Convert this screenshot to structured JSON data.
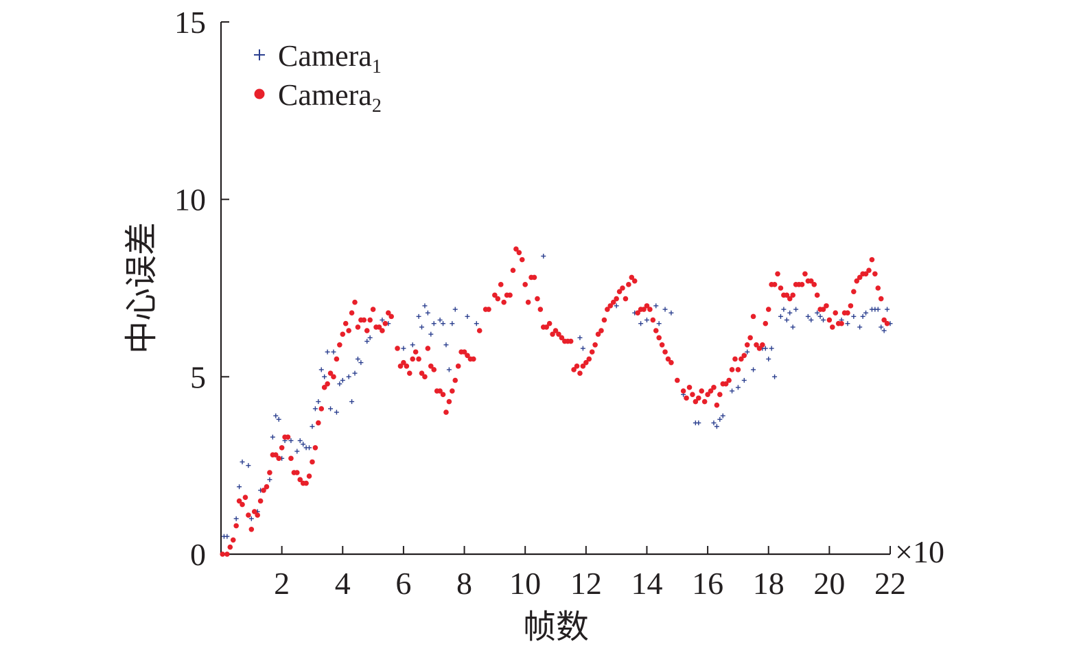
{
  "chart_data": {
    "type": "scatter",
    "xlabel": "帧数",
    "ylabel": "中心误差",
    "x_multiplier_label": "×10",
    "xlim": [
      0,
      22
    ],
    "ylim": [
      0,
      15
    ],
    "x_ticks": [
      2,
      4,
      6,
      8,
      10,
      12,
      14,
      16,
      18,
      20,
      22
    ],
    "y_ticks": [
      0,
      5,
      10,
      15
    ],
    "grid": false,
    "legend_position": "top-left",
    "series": [
      {
        "name": "Camera",
        "name_subscript": "1",
        "marker": "plus",
        "color": "#2b3f8f",
        "points": [
          [
            0.1,
            0.5
          ],
          [
            0.2,
            0.5
          ],
          [
            0.4,
            0.4
          ],
          [
            0.5,
            1.0
          ],
          [
            0.6,
            1.9
          ],
          [
            0.7,
            2.6
          ],
          [
            0.8,
            1.6
          ],
          [
            0.9,
            2.5
          ],
          [
            1.0,
            1.0
          ],
          [
            1.2,
            1.2
          ],
          [
            1.3,
            1.8
          ],
          [
            1.5,
            1.9
          ],
          [
            1.6,
            2.1
          ],
          [
            1.7,
            3.3
          ],
          [
            1.8,
            3.9
          ],
          [
            1.9,
            3.8
          ],
          [
            2.0,
            2.7
          ],
          [
            2.1,
            3.2
          ],
          [
            2.3,
            3.2
          ],
          [
            2.5,
            2.9
          ],
          [
            2.6,
            3.2
          ],
          [
            2.7,
            3.1
          ],
          [
            2.8,
            3.0
          ],
          [
            2.9,
            3.0
          ],
          [
            3.0,
            3.6
          ],
          [
            3.1,
            4.1
          ],
          [
            3.2,
            4.3
          ],
          [
            3.3,
            5.2
          ],
          [
            3.4,
            5.0
          ],
          [
            3.5,
            5.7
          ],
          [
            3.6,
            4.1
          ],
          [
            3.7,
            5.7
          ],
          [
            3.8,
            4.0
          ],
          [
            3.9,
            4.8
          ],
          [
            4.0,
            4.9
          ],
          [
            4.2,
            5.0
          ],
          [
            4.3,
            4.3
          ],
          [
            4.4,
            5.1
          ],
          [
            4.5,
            5.5
          ],
          [
            4.6,
            5.4
          ],
          [
            4.8,
            6.0
          ],
          [
            4.9,
            6.1
          ],
          [
            5.3,
            6.6
          ],
          [
            5.5,
            6.5
          ],
          [
            6.0,
            5.8
          ],
          [
            6.3,
            5.9
          ],
          [
            6.5,
            6.7
          ],
          [
            6.6,
            6.4
          ],
          [
            6.7,
            7.0
          ],
          [
            6.8,
            6.8
          ],
          [
            6.9,
            6.2
          ],
          [
            7.0,
            6.5
          ],
          [
            7.2,
            6.6
          ],
          [
            7.3,
            6.5
          ],
          [
            7.4,
            5.9
          ],
          [
            7.5,
            5.2
          ],
          [
            7.6,
            6.5
          ],
          [
            7.7,
            6.9
          ],
          [
            8.1,
            6.7
          ],
          [
            8.4,
            6.5
          ],
          [
            10.6,
            8.4
          ],
          [
            11.8,
            6.1
          ],
          [
            11.9,
            5.8
          ],
          [
            13.0,
            7.0
          ],
          [
            13.6,
            6.8
          ],
          [
            13.8,
            6.5
          ],
          [
            14.0,
            6.6
          ],
          [
            14.3,
            7.0
          ],
          [
            14.4,
            6.5
          ],
          [
            14.6,
            6.9
          ],
          [
            14.8,
            6.8
          ],
          [
            15.2,
            4.5
          ],
          [
            15.6,
            3.7
          ],
          [
            15.7,
            3.7
          ],
          [
            16.2,
            3.7
          ],
          [
            16.3,
            3.6
          ],
          [
            16.4,
            3.8
          ],
          [
            16.5,
            3.9
          ],
          [
            16.8,
            4.6
          ],
          [
            17.0,
            4.7
          ],
          [
            17.2,
            4.9
          ],
          [
            17.3,
            5.7
          ],
          [
            17.5,
            5.2
          ],
          [
            17.8,
            5.8
          ],
          [
            17.9,
            5.8
          ],
          [
            18.0,
            5.5
          ],
          [
            18.1,
            5.8
          ],
          [
            18.2,
            5.0
          ],
          [
            18.4,
            6.7
          ],
          [
            18.5,
            6.9
          ],
          [
            18.6,
            6.6
          ],
          [
            18.7,
            6.8
          ],
          [
            18.8,
            6.4
          ],
          [
            18.9,
            6.9
          ],
          [
            19.3,
            6.7
          ],
          [
            19.4,
            6.6
          ],
          [
            19.6,
            6.8
          ],
          [
            19.7,
            6.7
          ],
          [
            19.8,
            6.6
          ],
          [
            20.2,
            6.8
          ],
          [
            20.4,
            6.6
          ],
          [
            20.6,
            6.5
          ],
          [
            20.8,
            6.7
          ],
          [
            21.0,
            6.4
          ],
          [
            21.1,
            6.7
          ],
          [
            21.2,
            6.8
          ],
          [
            21.4,
            6.9
          ],
          [
            21.5,
            6.9
          ],
          [
            21.6,
            6.9
          ],
          [
            21.7,
            6.4
          ],
          [
            21.8,
            6.3
          ],
          [
            21.9,
            6.9
          ],
          [
            22.0,
            6.5
          ]
        ]
      },
      {
        "name": "Camera",
        "name_subscript": "2",
        "marker": "circle",
        "color": "#e8202a",
        "points": [
          [
            0.05,
            0.0
          ],
          [
            0.2,
            0.0
          ],
          [
            0.3,
            0.2
          ],
          [
            0.4,
            0.4
          ],
          [
            0.5,
            0.8
          ],
          [
            0.6,
            1.5
          ],
          [
            0.7,
            1.4
          ],
          [
            0.8,
            1.6
          ],
          [
            0.9,
            1.1
          ],
          [
            1.0,
            0.7
          ],
          [
            1.1,
            1.2
          ],
          [
            1.2,
            1.1
          ],
          [
            1.3,
            1.5
          ],
          [
            1.4,
            1.8
          ],
          [
            1.5,
            1.9
          ],
          [
            1.6,
            2.3
          ],
          [
            1.7,
            2.8
          ],
          [
            1.8,
            2.8
          ],
          [
            1.9,
            2.7
          ],
          [
            2.0,
            3.0
          ],
          [
            2.1,
            3.3
          ],
          [
            2.2,
            3.3
          ],
          [
            2.3,
            2.7
          ],
          [
            2.4,
            2.3
          ],
          [
            2.5,
            2.3
          ],
          [
            2.6,
            2.1
          ],
          [
            2.7,
            2.0
          ],
          [
            2.8,
            2.0
          ],
          [
            2.9,
            2.2
          ],
          [
            3.0,
            2.6
          ],
          [
            3.1,
            3.0
          ],
          [
            3.2,
            3.7
          ],
          [
            3.3,
            4.1
          ],
          [
            3.4,
            4.7
          ],
          [
            3.5,
            4.8
          ],
          [
            3.6,
            5.1
          ],
          [
            3.7,
            5.0
          ],
          [
            3.8,
            5.5
          ],
          [
            3.9,
            5.9
          ],
          [
            4.0,
            6.2
          ],
          [
            4.1,
            6.5
          ],
          [
            4.2,
            6.3
          ],
          [
            4.3,
            6.8
          ],
          [
            4.4,
            7.1
          ],
          [
            4.5,
            6.4
          ],
          [
            4.6,
            6.6
          ],
          [
            4.7,
            6.6
          ],
          [
            4.8,
            6.3
          ],
          [
            4.9,
            6.6
          ],
          [
            5.0,
            6.9
          ],
          [
            5.1,
            6.4
          ],
          [
            5.2,
            6.4
          ],
          [
            5.3,
            6.3
          ],
          [
            5.4,
            6.5
          ],
          [
            5.5,
            6.8
          ],
          [
            5.6,
            6.7
          ],
          [
            5.8,
            5.8
          ],
          [
            5.9,
            5.3
          ],
          [
            6.0,
            5.4
          ],
          [
            6.1,
            5.3
          ],
          [
            6.2,
            5.1
          ],
          [
            6.3,
            5.5
          ],
          [
            6.4,
            5.7
          ],
          [
            6.5,
            5.5
          ],
          [
            6.6,
            5.1
          ],
          [
            6.7,
            5.0
          ],
          [
            6.8,
            5.8
          ],
          [
            6.9,
            5.3
          ],
          [
            7.0,
            5.2
          ],
          [
            7.1,
            4.6
          ],
          [
            7.2,
            4.6
          ],
          [
            7.3,
            4.5
          ],
          [
            7.4,
            4.0
          ],
          [
            7.5,
            4.3
          ],
          [
            7.6,
            4.6
          ],
          [
            7.7,
            4.9
          ],
          [
            7.8,
            5.3
          ],
          [
            7.9,
            5.7
          ],
          [
            8.0,
            5.7
          ],
          [
            8.1,
            5.6
          ],
          [
            8.2,
            5.5
          ],
          [
            8.3,
            5.5
          ],
          [
            8.5,
            6.3
          ],
          [
            8.7,
            6.9
          ],
          [
            8.8,
            6.9
          ],
          [
            9.0,
            7.3
          ],
          [
            9.1,
            7.2
          ],
          [
            9.2,
            7.6
          ],
          [
            9.3,
            7.1
          ],
          [
            9.4,
            7.3
          ],
          [
            9.5,
            7.3
          ],
          [
            9.6,
            8.0
          ],
          [
            9.7,
            8.6
          ],
          [
            9.8,
            8.5
          ],
          [
            9.9,
            8.3
          ],
          [
            10.0,
            7.6
          ],
          [
            10.1,
            7.1
          ],
          [
            10.2,
            7.8
          ],
          [
            10.3,
            7.8
          ],
          [
            10.4,
            7.2
          ],
          [
            10.5,
            6.9
          ],
          [
            10.6,
            6.4
          ],
          [
            10.7,
            6.4
          ],
          [
            10.8,
            6.5
          ],
          [
            10.9,
            6.2
          ],
          [
            11.0,
            6.3
          ],
          [
            11.1,
            6.2
          ],
          [
            11.2,
            6.1
          ],
          [
            11.3,
            6.0
          ],
          [
            11.4,
            6.0
          ],
          [
            11.5,
            6.0
          ],
          [
            11.6,
            5.2
          ],
          [
            11.7,
            5.3
          ],
          [
            11.8,
            5.1
          ],
          [
            11.9,
            5.3
          ],
          [
            12.0,
            5.4
          ],
          [
            12.1,
            5.5
          ],
          [
            12.2,
            5.7
          ],
          [
            12.3,
            5.9
          ],
          [
            12.4,
            6.2
          ],
          [
            12.5,
            6.3
          ],
          [
            12.6,
            6.6
          ],
          [
            12.7,
            6.9
          ],
          [
            12.8,
            7.0
          ],
          [
            12.9,
            7.1
          ],
          [
            13.0,
            7.2
          ],
          [
            13.1,
            7.4
          ],
          [
            13.2,
            7.5
          ],
          [
            13.3,
            7.2
          ],
          [
            13.4,
            7.6
          ],
          [
            13.5,
            7.8
          ],
          [
            13.6,
            7.7
          ],
          [
            13.7,
            6.8
          ],
          [
            13.8,
            6.9
          ],
          [
            13.9,
            6.9
          ],
          [
            14.0,
            7.0
          ],
          [
            14.1,
            6.9
          ],
          [
            14.2,
            6.6
          ],
          [
            14.3,
            6.3
          ],
          [
            14.4,
            6.1
          ],
          [
            14.5,
            5.9
          ],
          [
            14.6,
            5.7
          ],
          [
            14.7,
            5.5
          ],
          [
            14.8,
            5.4
          ],
          [
            15.0,
            4.9
          ],
          [
            15.2,
            4.6
          ],
          [
            15.3,
            4.4
          ],
          [
            15.4,
            4.7
          ],
          [
            15.5,
            4.5
          ],
          [
            15.6,
            4.3
          ],
          [
            15.7,
            4.4
          ],
          [
            15.8,
            4.6
          ],
          [
            15.9,
            4.3
          ],
          [
            16.0,
            4.5
          ],
          [
            16.1,
            4.6
          ],
          [
            16.2,
            4.7
          ],
          [
            16.3,
            4.2
          ],
          [
            16.4,
            4.5
          ],
          [
            16.5,
            4.8
          ],
          [
            16.6,
            4.8
          ],
          [
            16.7,
            4.9
          ],
          [
            16.8,
            5.2
          ],
          [
            16.9,
            5.5
          ],
          [
            17.0,
            5.2
          ],
          [
            17.1,
            5.5
          ],
          [
            17.2,
            5.6
          ],
          [
            17.3,
            5.9
          ],
          [
            17.4,
            6.1
          ],
          [
            17.5,
            6.7
          ],
          [
            17.6,
            5.9
          ],
          [
            17.7,
            5.8
          ],
          [
            17.8,
            5.9
          ],
          [
            17.9,
            6.5
          ],
          [
            18.0,
            6.9
          ],
          [
            18.1,
            7.6
          ],
          [
            18.2,
            7.6
          ],
          [
            18.3,
            7.9
          ],
          [
            18.4,
            7.5
          ],
          [
            18.5,
            7.3
          ],
          [
            18.6,
            7.3
          ],
          [
            18.7,
            7.2
          ],
          [
            18.8,
            7.3
          ],
          [
            18.9,
            7.6
          ],
          [
            19.0,
            7.6
          ],
          [
            19.1,
            7.6
          ],
          [
            19.2,
            7.9
          ],
          [
            19.3,
            7.7
          ],
          [
            19.4,
            7.7
          ],
          [
            19.5,
            7.6
          ],
          [
            19.6,
            7.3
          ],
          [
            19.7,
            6.9
          ],
          [
            19.8,
            6.9
          ],
          [
            19.9,
            7.0
          ],
          [
            20.0,
            6.6
          ],
          [
            20.1,
            6.4
          ],
          [
            20.2,
            6.8
          ],
          [
            20.3,
            6.5
          ],
          [
            20.4,
            6.5
          ],
          [
            20.5,
            6.8
          ],
          [
            20.6,
            6.8
          ],
          [
            20.7,
            7.0
          ],
          [
            20.8,
            7.4
          ],
          [
            20.9,
            7.7
          ],
          [
            21.0,
            7.8
          ],
          [
            21.1,
            7.9
          ],
          [
            21.2,
            7.9
          ],
          [
            21.3,
            8.0
          ],
          [
            21.4,
            8.3
          ],
          [
            21.5,
            7.9
          ],
          [
            21.6,
            7.5
          ],
          [
            21.7,
            7.2
          ],
          [
            21.8,
            6.6
          ],
          [
            21.9,
            6.5
          ]
        ]
      }
    ]
  }
}
